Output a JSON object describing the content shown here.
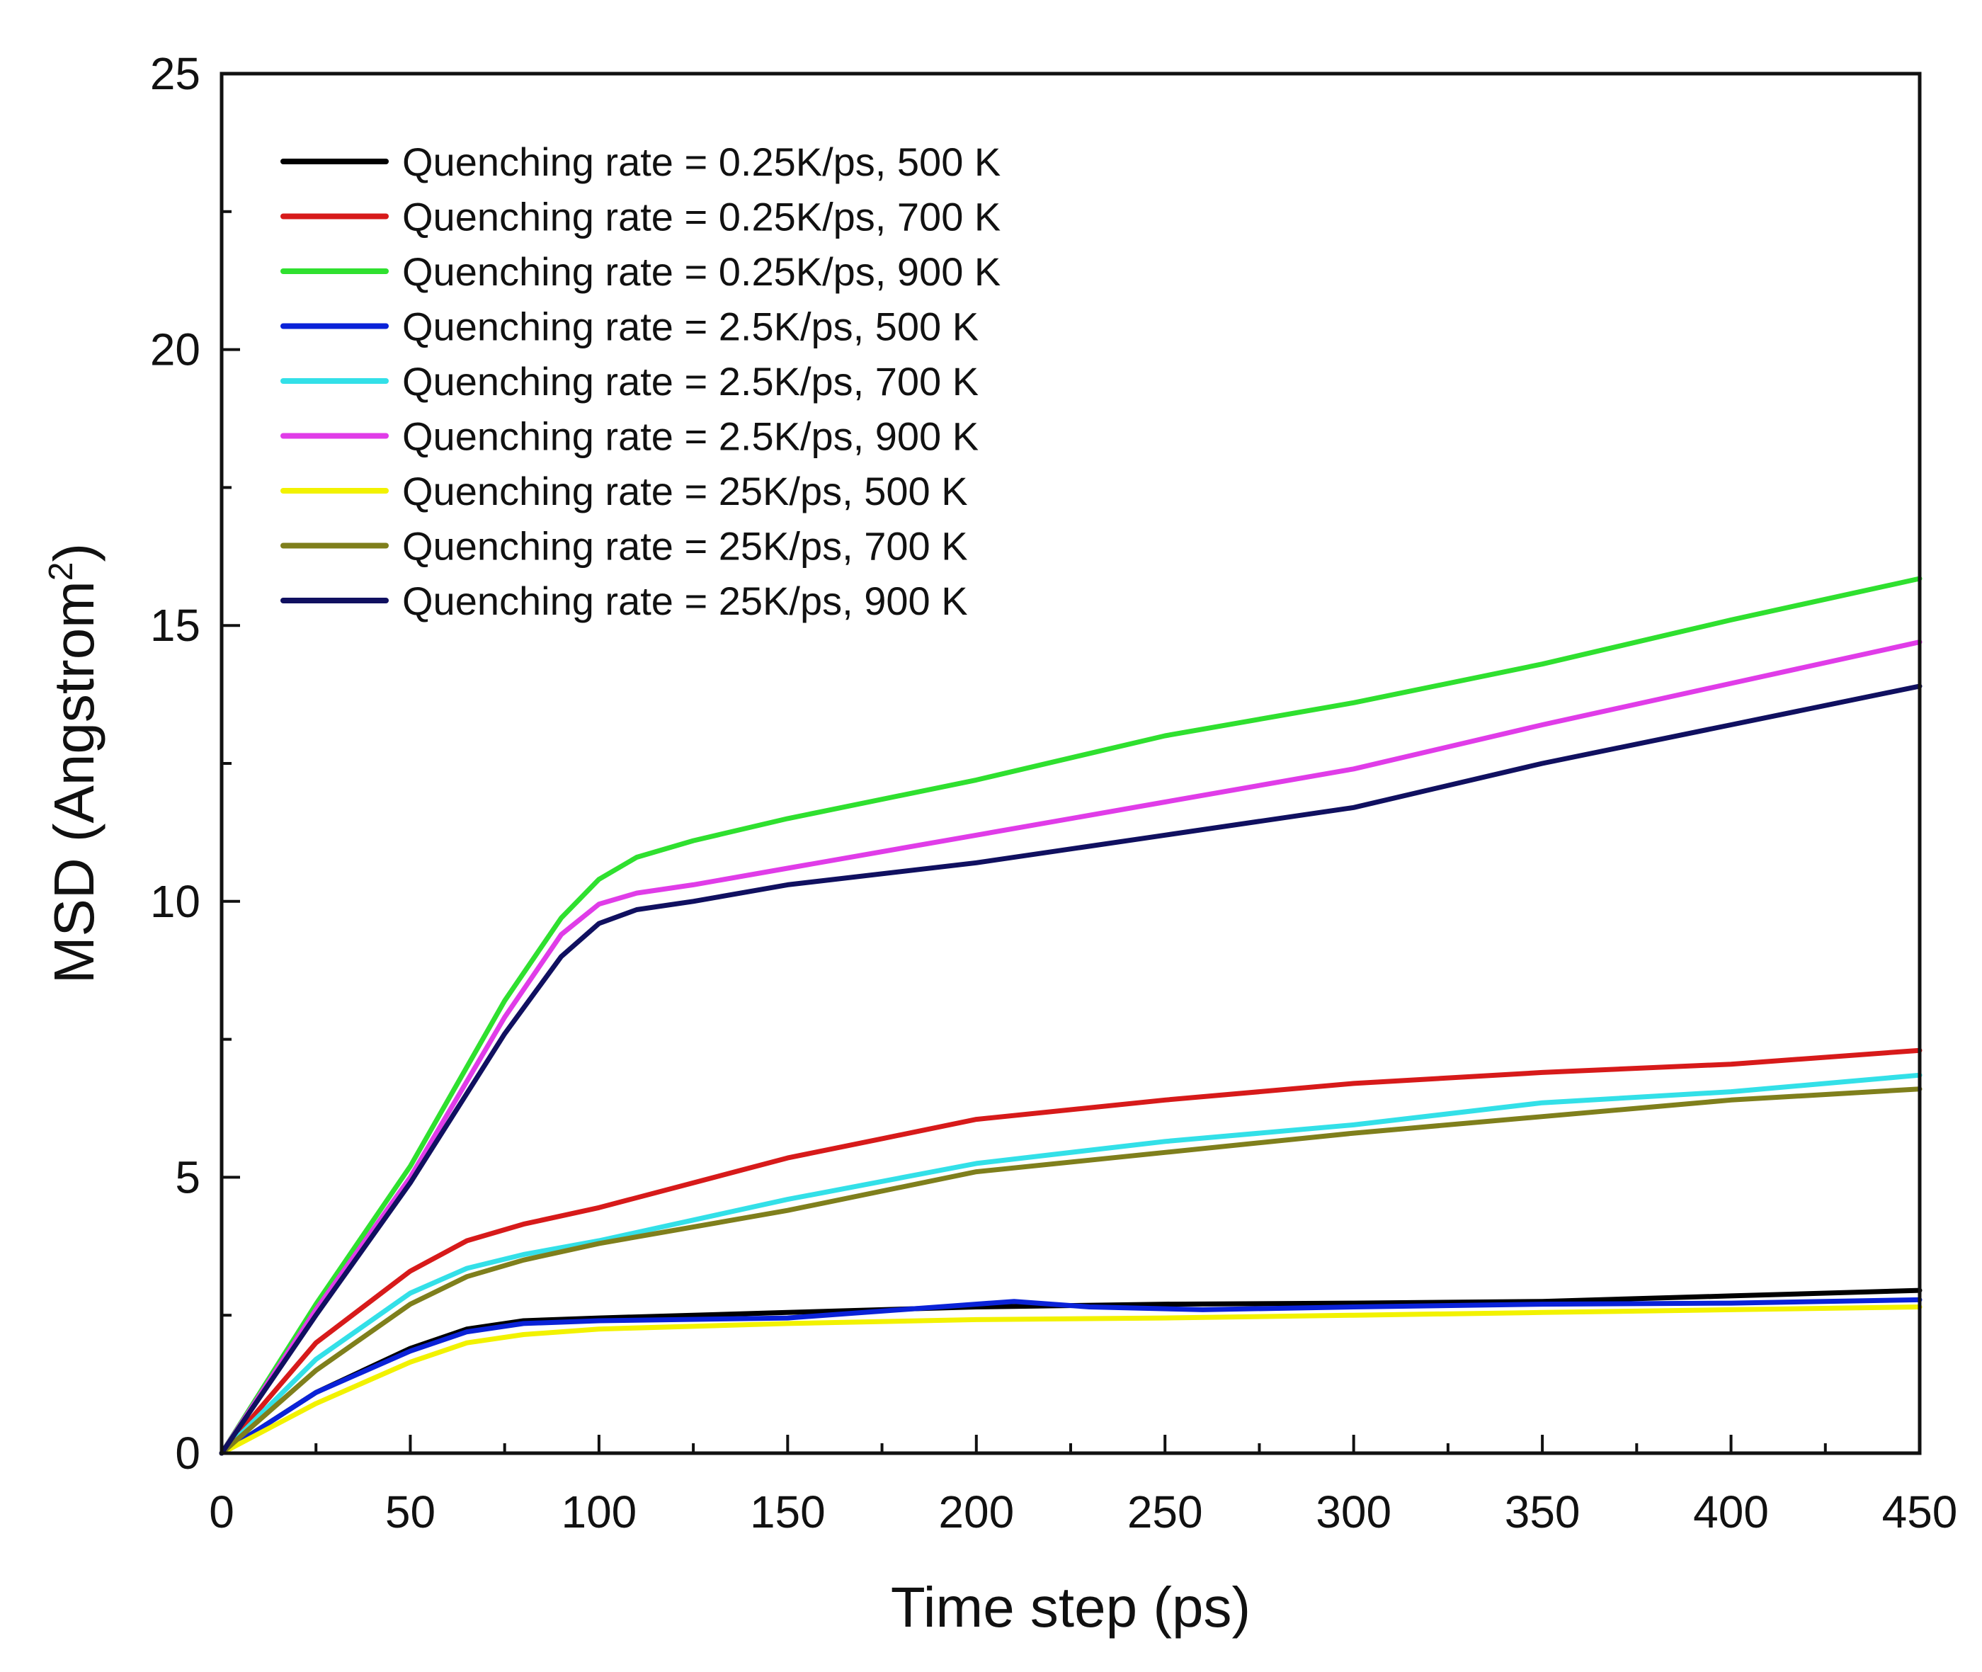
{
  "chart_data": {
    "type": "line",
    "title": "",
    "xlabel": "Time step (ps)",
    "ylabel_main": "MSD (Angstrom",
    "ylabel_sup": "2",
    "ylabel_close": ")",
    "xlim": [
      0,
      450
    ],
    "ylim": [
      0,
      25
    ],
    "x_ticks": [
      0,
      50,
      100,
      150,
      200,
      250,
      300,
      350,
      400,
      450
    ],
    "y_ticks": [
      0,
      5,
      10,
      15,
      20,
      25
    ],
    "x_tick_labels": [
      "0",
      "50",
      "100",
      "150",
      "200",
      "250",
      "300",
      "350",
      "400",
      "450"
    ],
    "y_tick_labels": [
      "0",
      "5",
      "10",
      "15",
      "20",
      "25"
    ],
    "x_minor_step": 25,
    "y_minor_step": 2.5,
    "legend_position": "top-left",
    "grid": false,
    "series": [
      {
        "name": "Quenching rate = 0.25K/ps, 500 K",
        "color": "#000000",
        "x": [
          0,
          25,
          50,
          65,
          80,
          100,
          150,
          200,
          250,
          300,
          350,
          400,
          450
        ],
        "y": [
          0,
          1.1,
          1.9,
          2.25,
          2.4,
          2.45,
          2.55,
          2.65,
          2.7,
          2.72,
          2.75,
          2.85,
          2.95
        ]
      },
      {
        "name": "Quenching rate = 0.25K/ps, 700 K",
        "color": "#d71a1a",
        "x": [
          0,
          25,
          50,
          65,
          80,
          100,
          125,
          150,
          175,
          200,
          250,
          300,
          350,
          400,
          450
        ],
        "y": [
          0,
          2.0,
          3.3,
          3.85,
          4.15,
          4.45,
          4.9,
          5.35,
          5.7,
          6.05,
          6.4,
          6.7,
          6.9,
          7.05,
          7.3
        ]
      },
      {
        "name": "Quenching rate = 0.25K/ps, 900 K",
        "color": "#2fe02f",
        "x": [
          0,
          25,
          50,
          75,
          90,
          100,
          110,
          125,
          150,
          200,
          250,
          300,
          350,
          400,
          450
        ],
        "y": [
          0,
          2.7,
          5.2,
          8.2,
          9.7,
          10.4,
          10.8,
          11.1,
          11.5,
          12.2,
          13.0,
          13.6,
          14.3,
          15.1,
          15.85
        ]
      },
      {
        "name": "Quenching rate = 2.5K/ps, 500 K",
        "color": "#0a22d8",
        "x": [
          0,
          25,
          50,
          65,
          80,
          100,
          150,
          190,
          210,
          230,
          260,
          300,
          350,
          400,
          450
        ],
        "y": [
          0,
          1.1,
          1.85,
          2.2,
          2.35,
          2.4,
          2.45,
          2.65,
          2.75,
          2.65,
          2.6,
          2.65,
          2.7,
          2.72,
          2.78
        ]
      },
      {
        "name": "Quenching rate = 2.5K/ps, 700 K",
        "color": "#33e0e8",
        "x": [
          0,
          25,
          50,
          65,
          80,
          100,
          150,
          200,
          250,
          300,
          350,
          400,
          450
        ],
        "y": [
          0,
          1.7,
          2.9,
          3.35,
          3.6,
          3.85,
          4.6,
          5.25,
          5.65,
          5.95,
          6.35,
          6.55,
          6.85
        ]
      },
      {
        "name": "Quenching rate = 2.5K/ps, 900 K",
        "color": "#e03ce8",
        "x": [
          0,
          25,
          50,
          75,
          90,
          100,
          110,
          125,
          150,
          200,
          250,
          300,
          350,
          400,
          450
        ],
        "y": [
          0,
          2.6,
          5.0,
          7.9,
          9.4,
          9.95,
          10.15,
          10.3,
          10.6,
          11.2,
          11.8,
          12.4,
          13.2,
          13.95,
          14.7
        ]
      },
      {
        "name": "Quenching rate = 25K/ps, 500 K",
        "color": "#f2f200",
        "x": [
          0,
          25,
          50,
          65,
          80,
          100,
          150,
          200,
          250,
          300,
          350,
          400,
          450
        ],
        "y": [
          0,
          0.9,
          1.65,
          2.0,
          2.15,
          2.25,
          2.35,
          2.42,
          2.45,
          2.5,
          2.55,
          2.6,
          2.65
        ]
      },
      {
        "name": "Quenching rate = 25K/ps, 700 K",
        "color": "#7f7f1c",
        "x": [
          0,
          25,
          50,
          65,
          80,
          100,
          150,
          200,
          250,
          300,
          350,
          400,
          450
        ],
        "y": [
          0,
          1.5,
          2.7,
          3.2,
          3.5,
          3.8,
          4.4,
          5.1,
          5.45,
          5.8,
          6.1,
          6.4,
          6.6
        ]
      },
      {
        "name": "Quenching rate = 25K/ps, 900 K",
        "color": "#101060",
        "x": [
          0,
          25,
          50,
          75,
          90,
          100,
          110,
          125,
          150,
          200,
          250,
          300,
          350,
          400,
          450
        ],
        "y": [
          0,
          2.5,
          4.9,
          7.6,
          9.0,
          9.6,
          9.85,
          10.0,
          10.3,
          10.7,
          11.2,
          11.7,
          12.5,
          13.2,
          13.9
        ]
      }
    ]
  }
}
